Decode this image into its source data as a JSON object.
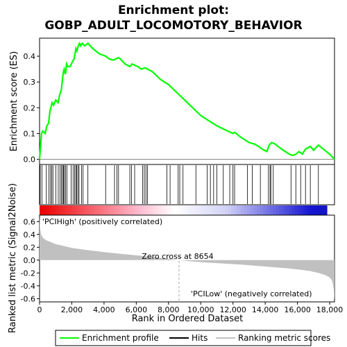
{
  "chart_data": {
    "type": "line",
    "title": "Enrichment plot:",
    "subtitle": "GOBP_ADULT_LOCOMOTORY_BEHAVIOR",
    "top_panel": {
      "ylabel": "Enrichment score (ES)",
      "ylim": [
        -0.02,
        0.47
      ],
      "yticks": [
        "0.0",
        "0.1",
        "0.2",
        "0.3",
        "0.4"
      ],
      "yticks_values": [
        0.0,
        0.1,
        0.2,
        0.3,
        0.4
      ],
      "series": [
        {
          "name": "Enrichment profile",
          "color": "#00ff00",
          "x": [
            0,
            60,
            120,
            200,
            350,
            450,
            560,
            650,
            700,
            780,
            870,
            1000,
            1150,
            1250,
            1350,
            1420,
            1480,
            1530,
            1600,
            1680,
            1750,
            1900,
            2050,
            2150,
            2250,
            2320,
            2400,
            2480,
            2550,
            2650,
            2800,
            3000,
            3300,
            3700,
            4100,
            4300,
            4550,
            4750,
            4900,
            5000,
            5300,
            5600,
            5750,
            5900,
            6100,
            6300,
            6550,
            6700,
            7000,
            7500,
            8000,
            8500,
            9000,
            9500,
            10000,
            10500,
            11000,
            11500,
            12000,
            12100,
            12500,
            13000,
            13300,
            13600,
            13800,
            14100,
            14250,
            14400,
            14600,
            15000,
            15500,
            15700,
            15900,
            16100,
            16300,
            16500,
            16800,
            17000,
            17300,
            17600,
            18000,
            18300
          ],
          "y": [
            0.0,
            0.05,
            0.1,
            0.11,
            0.1,
            0.13,
            0.14,
            0.19,
            0.2,
            0.22,
            0.21,
            0.23,
            0.22,
            0.25,
            0.27,
            0.31,
            0.34,
            0.35,
            0.33,
            0.37,
            0.36,
            0.36,
            0.38,
            0.39,
            0.43,
            0.42,
            0.44,
            0.45,
            0.44,
            0.45,
            0.44,
            0.45,
            0.43,
            0.41,
            0.4,
            0.39,
            0.385,
            0.39,
            0.395,
            0.39,
            0.37,
            0.36,
            0.37,
            0.365,
            0.36,
            0.35,
            0.355,
            0.35,
            0.34,
            0.31,
            0.29,
            0.26,
            0.23,
            0.2,
            0.17,
            0.15,
            0.13,
            0.115,
            0.1,
            0.105,
            0.085,
            0.065,
            0.06,
            0.05,
            0.04,
            0.03,
            0.055,
            0.065,
            0.06,
            0.04,
            0.02,
            0.015,
            0.02,
            0.03,
            0.02,
            0.04,
            0.05,
            0.035,
            0.055,
            0.04,
            0.02,
            0.0
          ]
        }
      ]
    },
    "hits": {
      "positions": [
        40,
        150,
        420,
        580,
        680,
        760,
        830,
        1010,
        1160,
        1270,
        1360,
        1430,
        1490,
        1540,
        1620,
        1700,
        1960,
        2080,
        2170,
        2250,
        2300,
        2380,
        2450,
        2600,
        2700,
        3000,
        4100,
        4650,
        4800,
        4900,
        5600,
        5700,
        5900,
        6400,
        6500,
        6600,
        6700,
        7900,
        8100,
        8600,
        8700,
        8900,
        9700,
        10400,
        10600,
        10800,
        11000,
        11400,
        11800,
        12000,
        12100,
        12900,
        13200,
        13700,
        14200,
        14300,
        14350,
        14500,
        15600,
        15900,
        16200,
        16500,
        16800,
        17300
      ]
    },
    "bottom_panel": {
      "ylabel": "Ranked list metric (Signal2Noise)",
      "ylim": [
        -0.65,
        0.7
      ],
      "yticks": [
        "-0.6",
        "-0.4",
        "-0.2",
        "0.0",
        "0.2",
        "0.4",
        "0.6"
      ],
      "yticks_values": [
        -0.6,
        -0.4,
        -0.2,
        0.0,
        0.2,
        0.4,
        0.6
      ],
      "metric_x": [
        0,
        30,
        100,
        200,
        400,
        700,
        1000,
        1500,
        2000,
        3000,
        4000,
        5000,
        6000,
        7000,
        8000,
        8654,
        9500,
        10500,
        11500,
        12500,
        13500,
        14500,
        15500,
        16200,
        16800,
        17300,
        17700,
        18000,
        18150,
        18250,
        18300
      ],
      "metric_y": [
        0.68,
        0.5,
        0.4,
        0.35,
        0.31,
        0.28,
        0.25,
        0.22,
        0.19,
        0.155,
        0.125,
        0.1,
        0.075,
        0.05,
        0.02,
        0.0,
        -0.02,
        -0.04,
        -0.055,
        -0.07,
        -0.09,
        -0.11,
        -0.13,
        -0.15,
        -0.17,
        -0.2,
        -0.23,
        -0.27,
        -0.32,
        -0.45,
        -0.62
      ],
      "zero_cross_label": "Zero cross at 8654",
      "zero_cross": 8654,
      "high_label": "'PCIHigh' (positively correlated)",
      "low_label": "'PCILow' (negatively correlated)"
    },
    "xlabel": "Rank in Ordered Dataset",
    "xlim": [
      0,
      18300
    ],
    "xticks": [
      "0",
      "2,000",
      "4,000",
      "6,000",
      "8,000",
      "10,000",
      "12,000",
      "14,000",
      "16,000",
      "18,000"
    ],
    "xticks_values": [
      0,
      2000,
      4000,
      6000,
      8000,
      10000,
      12000,
      14000,
      16000,
      18000
    ],
    "legend": {
      "placement": "bottom",
      "entries": [
        {
          "label": "Enrichment profile",
          "color": "#00ff00"
        },
        {
          "label": "Hits",
          "color": "#000000"
        },
        {
          "label": "Ranking metric scores",
          "color": "#c0c0c0"
        }
      ]
    },
    "colors": {
      "profile": "#00ff00",
      "metric_fill": "#c0c0c0",
      "high_text": "#c00000",
      "low_text": "#2020c0"
    }
  }
}
